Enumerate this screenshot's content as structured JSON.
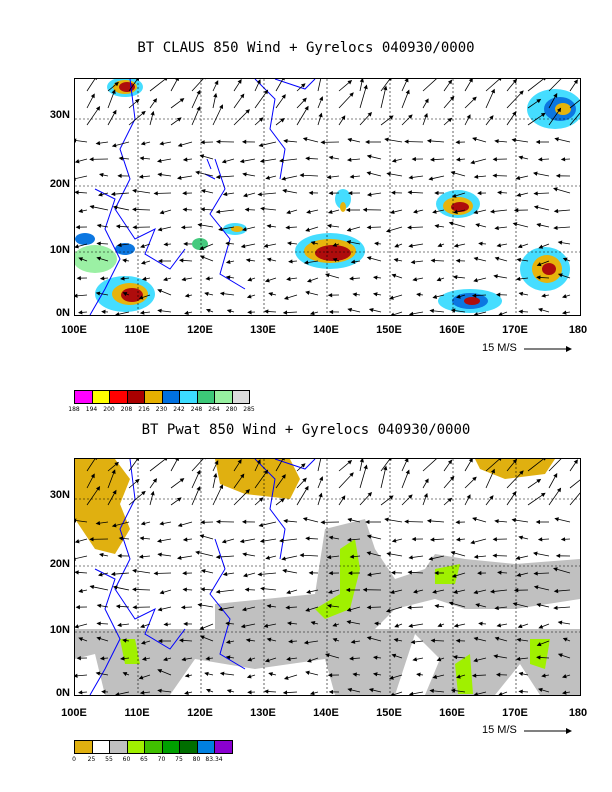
{
  "top": {
    "title": "BT CLAUS 850 Wind + Gyrelocs 040930/0000",
    "y_labels": [
      "30N",
      "20N",
      "10N",
      "0N"
    ],
    "x_labels": [
      "100E",
      "110E",
      "120E",
      "130E",
      "140E",
      "150E",
      "160E",
      "170E",
      "180"
    ],
    "scale_label": "15 M/S",
    "colorbar": {
      "colors": [
        "#ff00ff",
        "#ffff00",
        "#ff0000",
        "#aa0000",
        "#e6b000",
        "#0070e0",
        "#3cdcff",
        "#3cc878",
        "#96f0a0",
        "#dcdcdc"
      ],
      "ticks": [
        "188",
        "194",
        "200",
        "208",
        "216",
        "230",
        "242",
        "248",
        "264",
        "280",
        "285"
      ]
    }
  },
  "bottom": {
    "title": "BT Pwat 850 Wind + Gyrelocs 040930/0000",
    "y_labels": [
      "30N",
      "20N",
      "10N",
      "0N"
    ],
    "x_labels": [
      "100E",
      "110E",
      "120E",
      "130E",
      "140E",
      "150E",
      "160E",
      "170E",
      "180"
    ],
    "scale_label": "15 M/S",
    "colorbar": {
      "colors": [
        "#e0b010",
        "#ffffff",
        "#c0c0c0",
        "#a0f000",
        "#40c000",
        "#00a000",
        "#006e00",
        "#0080e0",
        "#8a00d0"
      ],
      "ticks": [
        "0",
        "25",
        "55",
        "60",
        "65",
        "70",
        "75",
        "80",
        "83.34"
      ]
    }
  }
}
